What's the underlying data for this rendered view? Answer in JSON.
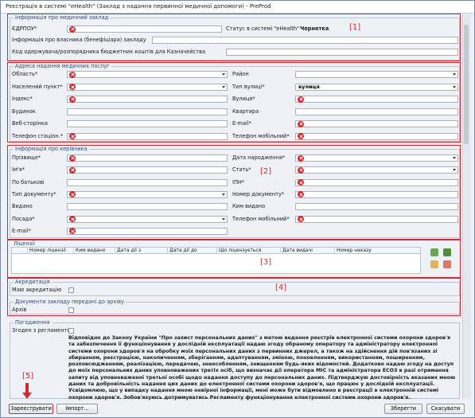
{
  "window": {
    "title": "Реєстрація в системі \"eHealth\" (Заклад з надання первинної медичної допомоги) - PreProd"
  },
  "institution": {
    "title": "Інформація про медичний заклад",
    "annotation": "[1]",
    "edrpou": "ЄДРПОУ*",
    "status_label": "Статус в системі \"eHealth\"",
    "status_value": "Чернетка",
    "owner": "Інформація про власника (бенефіціара) закладу",
    "treasury_code": "Код одержувача/розпорядника бюджетних коштів для Казначейства"
  },
  "address": {
    "title": "Адреса надання медичних послуг",
    "fields": [
      "Область*",
      "Район",
      "Населений пункт*",
      "Тип вулиці*",
      "Індекс*",
      "Вулиця*",
      "Будинок",
      "Квартира",
      "Веб-сторінка",
      "E-mail*",
      "Телефон стаціон.*",
      "Телефон мобільний*"
    ],
    "street_type_value": "вулиця"
  },
  "head": {
    "title": "Інформація про керівника",
    "annotation": "[2]",
    "fields": [
      "Прізвище*",
      "Дата народження*",
      "Ім'я*",
      "Стать*",
      "По батькові",
      "ІПН*",
      "Тип документу*",
      "Номер документу*",
      "Видано",
      "Ким видано",
      "Посада*",
      "Телефон мобільний*",
      "E-mail*"
    ]
  },
  "licenses": {
    "title": "Ліцензії",
    "annotation": "[3]",
    "columns": [
      "Номер ліцензії",
      "Ким видано",
      "Дата дії з",
      "Дата дії до",
      "Що ліцензується",
      "Дата видачі",
      "Номер наказу"
    ]
  },
  "accreditation": {
    "title": "Акредитація",
    "checkbox": "Маю акредитацію",
    "annotation": "[4]",
    "archive_title": "Документи закладу передані до архіву",
    "archive_checkbox": "Архів"
  },
  "agreement": {
    "title": "Погодження",
    "checkbox": "Згоден з регламентом",
    "text": "Відповідно до Закону України \"Про захист персональних даних\" з метою ведення реєстрів електронної системи охорони здоров'я та забезпечення її функціонування у дослідній експлуатації надаю згоду обраному оператору та адміністратору електронної системи охорони здоров'я на обробку моїх персональних даних з первинних джерел, а також на здійснення дій пов'язаних зі збиранням, реєстрацією, накопиченням, зберіганням, адаптуванням, зміною, поновленням, використанням, поширенням, розповсюдженням, реалізацією, передачею, знеособленням, знищенням будь-яких відомостей. Додатково надаю згоду на доступ до моїх персональних даних уповноважених третіх осіб, що визначає дії оператора МІС та адміністратора ЕСОЗ в разі отримання запиту від уповноваженої третьої особі щодо надання доступу до персональних даних. Підтверджую достовірність вказаних мною даних та добровільність надання цих даних до електронної системи охорони здоров'я, що працює у дослідній експлуатації. Усвідомлюю, що у випадку надання мною невірної інформації, мені може бути відмовлено в реєстрації в електронній системі охорони здоров'я. Зобов'язуюсь дотримуватись Регламенту функціонування електронної системи охорони здоров'я."
  },
  "buttons": {
    "annotation": "[5]",
    "register": "Зареєструвати",
    "import": "Імпорт...",
    "save": "Зберегти",
    "cancel": "Скасувати"
  }
}
